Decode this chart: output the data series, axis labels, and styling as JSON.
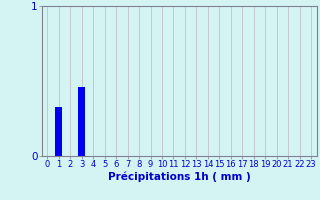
{
  "hours": [
    0,
    1,
    2,
    3,
    4,
    5,
    6,
    7,
    8,
    9,
    10,
    11,
    12,
    13,
    14,
    15,
    16,
    17,
    18,
    19,
    20,
    21,
    22,
    23
  ],
  "values": [
    0,
    0.33,
    0,
    0.46,
    0,
    0,
    0,
    0,
    0,
    0,
    0,
    0,
    0,
    0,
    0,
    0,
    0,
    0,
    0,
    0,
    0,
    0,
    0,
    0
  ],
  "bar_color": "#0000ee",
  "background_color": "#d4f4f4",
  "grid_color": "#c0c0c8",
  "axis_color": "#808090",
  "text_color": "#0000cc",
  "xlabel": "Précipitations 1h ( mm )",
  "ylim": [
    0,
    1.0
  ],
  "xlim": [
    -0.5,
    23.5
  ],
  "yticks": [
    0,
    1
  ],
  "xtick_labels": [
    "0",
    "1",
    "2",
    "3",
    "4",
    "5",
    "6",
    "7",
    "8",
    "9",
    "10",
    "11",
    "12",
    "13",
    "14",
    "15",
    "16",
    "17",
    "18",
    "19",
    "20",
    "21",
    "22",
    "23"
  ],
  "xlabel_fontsize": 7.5,
  "tick_fontsize": 6.0,
  "ytick_fontsize": 7.5,
  "bar_width": 0.6
}
